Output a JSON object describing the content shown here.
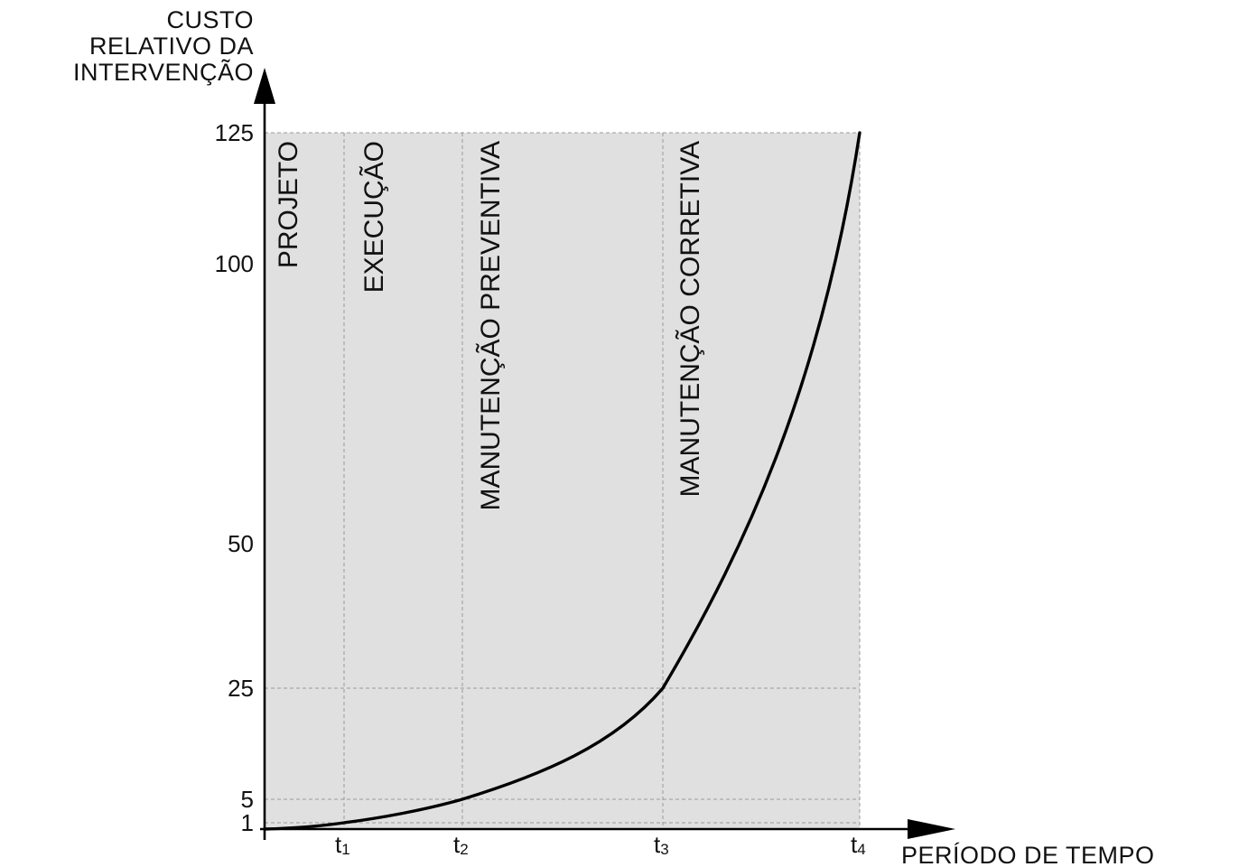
{
  "chart_data": {
    "type": "line",
    "ylabel": [
      "CUSTO",
      "RELATIVO DA",
      "INTERVENÇÃO"
    ],
    "xlabel": "PERÍODO DE TEMPO",
    "y_ticks": [
      1,
      5,
      25,
      50,
      100,
      125
    ],
    "ylim": [
      0,
      125
    ],
    "x_ticks": [
      {
        "base": "t",
        "sub": "1"
      },
      {
        "base": "t",
        "sub": "2"
      },
      {
        "base": "t",
        "sub": "3"
      },
      {
        "base": "t",
        "sub": "4"
      }
    ],
    "phases": [
      "PROJETO",
      "EXECUÇÃO",
      "MANUTENÇÃO PREVENTIVA",
      "MANUTENÇÃO CORRETIVA"
    ],
    "series": [
      {
        "points": [
          {
            "x": "t0",
            "y": 0
          },
          {
            "x": "t1",
            "y": 1
          },
          {
            "x": "t2",
            "y": 5
          },
          {
            "x": "t3",
            "y": 25
          },
          {
            "x": "t4",
            "y": 125
          }
        ]
      }
    ],
    "colors": {
      "shading": "#e0e0e0",
      "curve": "#000000",
      "grid": "#9a9a9a"
    },
    "grid": true
  }
}
